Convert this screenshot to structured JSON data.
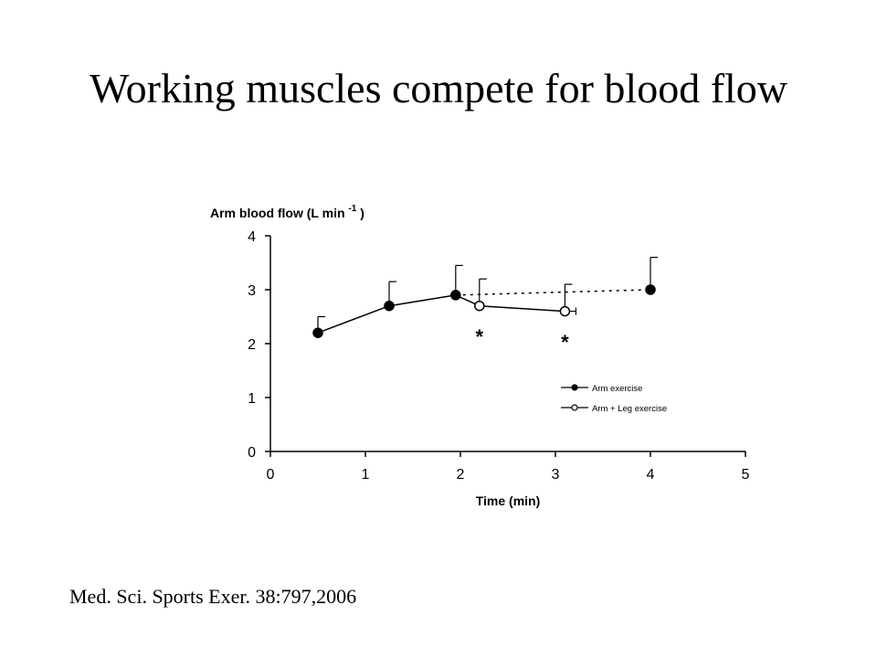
{
  "slide": {
    "title": "Working muscles compete for blood flow",
    "citation": "Med. Sci. Sports Exer. 38:797,2006"
  },
  "chart_data": {
    "type": "line",
    "title": "",
    "xlabel": "Time (min)",
    "ylabel": "Arm blood flow (L min",
    "ylabel_superscript": "-1",
    "ylabel_suffix": ")",
    "xlim": [
      0,
      5
    ],
    "ylim": [
      0,
      4
    ],
    "xticks": [
      0,
      1,
      2,
      3,
      4,
      5
    ],
    "yticks": [
      0,
      1,
      2,
      3,
      4
    ],
    "grid": false,
    "legend_position": "right",
    "series": [
      {
        "name": "Arm exercise",
        "marker": "filled-circle",
        "color": "#000000",
        "points": [
          {
            "x": 0.5,
            "y": 2.2,
            "err": 0.3
          },
          {
            "x": 1.25,
            "y": 2.7,
            "err": 0.45
          },
          {
            "x": 1.95,
            "y": 2.9,
            "err": 0.55
          },
          {
            "x": 4.0,
            "y": 3.0,
            "err": 0.6
          }
        ],
        "line_styles": [
          "solid",
          "solid",
          "dotted"
        ]
      },
      {
        "name": "Arm + Leg exercise",
        "marker": "open-circle",
        "color": "#000000",
        "points": [
          {
            "x": 1.95,
            "y": 2.9,
            "err": 0
          },
          {
            "x": 2.2,
            "y": 2.7,
            "err": 0.5
          },
          {
            "x": 3.1,
            "y": 2.6,
            "err": 0.5
          }
        ],
        "line_styles": [
          "solid",
          "solid"
        ]
      }
    ],
    "annotations": [
      {
        "text": "*",
        "x": 2.2,
        "y": 2.2
      },
      {
        "text": "*",
        "x": 3.1,
        "y": 2.1
      }
    ]
  }
}
